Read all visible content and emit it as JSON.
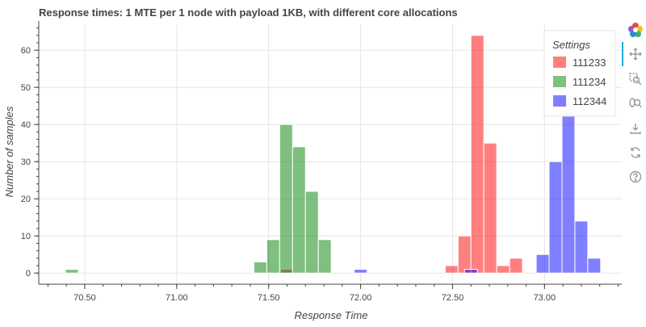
{
  "chart_data": {
    "type": "bar",
    "title": "Response times: 1 MTE per 1 node with payload 1KB, with different core allocations",
    "xlabel": "Response Time",
    "ylabel": "Number of samples",
    "xlim": [
      70.25,
      73.42
    ],
    "ylim": [
      -3,
      67
    ],
    "xticks": [
      "70.50",
      "71.00",
      "71.50",
      "72.00",
      "72.50",
      "73.00"
    ],
    "xtick_values": [
      70.5,
      71.0,
      71.5,
      72.0,
      72.5,
      73.0
    ],
    "yticks": [
      "0",
      "10",
      "20",
      "30",
      "40",
      "50",
      "60"
    ],
    "ytick_values": [
      0,
      10,
      20,
      30,
      40,
      50,
      60
    ],
    "bin_width": 0.07,
    "grid": true,
    "legend": {
      "title": "Settings",
      "placement": "top-right",
      "entries": [
        "111233",
        "111234",
        "112344"
      ]
    },
    "series": [
      {
        "name": "111233",
        "color": "#ff0000",
        "bins": [
          {
            "x": 71.6,
            "count": 1
          },
          {
            "x": 72.495,
            "count": 2
          },
          {
            "x": 72.565,
            "count": 10
          },
          {
            "x": 72.635,
            "count": 64
          },
          {
            "x": 72.705,
            "count": 35
          },
          {
            "x": 72.775,
            "count": 2
          },
          {
            "x": 72.845,
            "count": 4
          }
        ]
      },
      {
        "name": "111234",
        "color": "#008000",
        "bins": [
          {
            "x": 70.43,
            "count": 1
          },
          {
            "x": 71.455,
            "count": 3
          },
          {
            "x": 71.525,
            "count": 9
          },
          {
            "x": 71.595,
            "count": 40
          },
          {
            "x": 71.665,
            "count": 34
          },
          {
            "x": 71.735,
            "count": 22
          },
          {
            "x": 71.805,
            "count": 9
          }
        ]
      },
      {
        "name": "112344",
        "color": "#0000ff",
        "bins": [
          {
            "x": 72.0,
            "count": 1
          },
          {
            "x": 72.6,
            "count": 1
          },
          {
            "x": 72.99,
            "count": 5
          },
          {
            "x": 73.06,
            "count": 30
          },
          {
            "x": 73.13,
            "count": 43
          },
          {
            "x": 73.2,
            "count": 14
          },
          {
            "x": 73.27,
            "count": 4
          }
        ]
      }
    ]
  },
  "toolbar": {
    "logo": "bokeh-logo-icon",
    "tools": [
      "pan-icon",
      "box-zoom-icon",
      "wheel-zoom-icon",
      "save-icon",
      "reset-icon",
      "help-icon"
    ]
  }
}
